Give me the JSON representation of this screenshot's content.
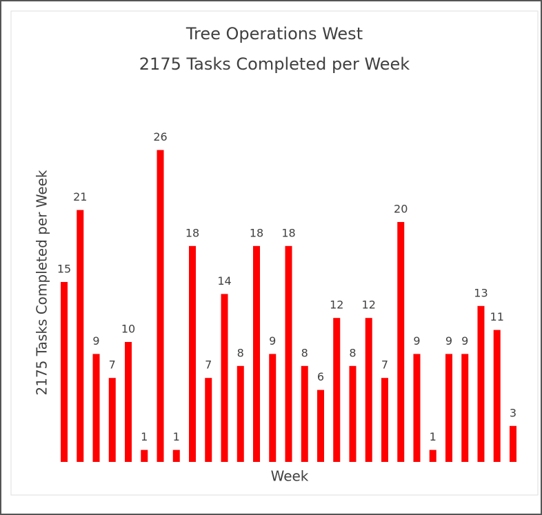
{
  "chart_data": {
    "type": "bar",
    "title": "Tree Operations West",
    "subtitle": "2175 Tasks Completed per Week",
    "x_label": "Week",
    "y_label": "2175 Tasks Completed per Week",
    "categories": [
      null,
      null,
      null,
      null,
      null,
      null,
      null,
      null,
      null,
      null,
      null,
      null,
      null,
      null,
      null,
      null,
      null,
      null,
      null,
      null,
      null,
      null,
      null,
      null,
      null,
      null,
      null,
      null,
      null
    ],
    "values": [
      15,
      21,
      9,
      7,
      10,
      1,
      26,
      1,
      18,
      7,
      14,
      8,
      18,
      9,
      18,
      8,
      6,
      12,
      8,
      12,
      7,
      20,
      9,
      1,
      9,
      9,
      13,
      11,
      3
    ],
    "color": "#ff0000",
    "ylim": [
      0,
      30
    ]
  }
}
